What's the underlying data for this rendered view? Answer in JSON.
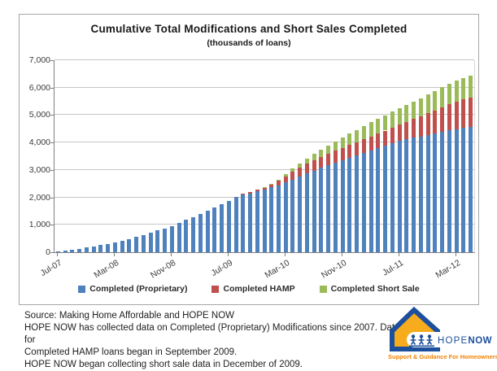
{
  "chart_data": {
    "type": "bar",
    "stacked": true,
    "title": "Cumulative Total Modifications and Short Sales Completed",
    "subtitle": "(thousands of loans)",
    "xlabel": "",
    "ylabel": "",
    "ylim": [
      0,
      7000
    ],
    "y_tick_step": 1000,
    "y_tick_labels": [
      "0",
      "1,000",
      "2,000",
      "3,000",
      "4,000",
      "5,000",
      "6,000",
      "7,000"
    ],
    "x_tick_every": 8,
    "x_tick_labels_shown": [
      "Jul-07",
      "Mar-08",
      "Nov-08",
      "Jul-09",
      "Mar-10",
      "Nov-10",
      "Jul-11",
      "Mar-12"
    ],
    "grid": true,
    "legend_position": "bottom",
    "x": [
      "Jul-07",
      "Aug-07",
      "Sep-07",
      "Oct-07",
      "Nov-07",
      "Dec-07",
      "Jan-08",
      "Feb-08",
      "Mar-08",
      "Apr-08",
      "May-08",
      "Jun-08",
      "Jul-08",
      "Aug-08",
      "Sep-08",
      "Oct-08",
      "Nov-08",
      "Dec-08",
      "Jan-09",
      "Feb-09",
      "Mar-09",
      "Apr-09",
      "May-09",
      "Jun-09",
      "Jul-09",
      "Aug-09",
      "Sep-09",
      "Oct-09",
      "Nov-09",
      "Dec-09",
      "Jan-10",
      "Feb-10",
      "Mar-10",
      "Apr-10",
      "May-10",
      "Jun-10",
      "Jul-10",
      "Aug-10",
      "Sep-10",
      "Oct-10",
      "Nov-10",
      "Dec-10",
      "Jan-11",
      "Feb-11",
      "Mar-11",
      "Apr-11",
      "May-11",
      "Jun-11",
      "Jul-11",
      "Aug-11",
      "Sep-11",
      "Oct-11",
      "Nov-11",
      "Dec-11",
      "Jan-12",
      "Feb-12",
      "Mar-12",
      "Apr-12",
      "May-12"
    ],
    "series": [
      {
        "name": "Completed (Proprietary)",
        "color": "#4F81BD",
        "values": [
          20,
          50,
          90,
          130,
          170,
          215,
          260,
          305,
          350,
          415,
          480,
          550,
          620,
          700,
          800,
          875,
          955,
          1065,
          1175,
          1275,
          1395,
          1510,
          1630,
          1755,
          1880,
          2005,
          2100,
          2150,
          2215,
          2290,
          2360,
          2440,
          2540,
          2650,
          2760,
          2870,
          2975,
          3080,
          3180,
          3270,
          3350,
          3450,
          3540,
          3630,
          3710,
          3800,
          3890,
          3970,
          4050,
          4110,
          4170,
          4220,
          4270,
          4330,
          4390,
          4440,
          4490,
          4530,
          4560
        ]
      },
      {
        "name": "Completed HAMP",
        "color": "#C0504D",
        "values": [
          0,
          0,
          0,
          0,
          0,
          0,
          0,
          0,
          0,
          0,
          0,
          0,
          0,
          0,
          0,
          0,
          0,
          0,
          0,
          0,
          0,
          0,
          0,
          0,
          0,
          0,
          30,
          45,
          60,
          75,
          115,
          160,
          230,
          280,
          320,
          350,
          375,
          395,
          410,
          425,
          440,
          455,
          470,
          490,
          510,
          525,
          545,
          570,
          600,
          640,
          685,
          735,
          790,
          845,
          900,
          950,
          1000,
          1040,
          1075
        ]
      },
      {
        "name": "Completed Short Sale",
        "color": "#9BBB59",
        "values": [
          0,
          0,
          0,
          0,
          0,
          0,
          0,
          0,
          0,
          0,
          0,
          0,
          0,
          0,
          0,
          0,
          0,
          0,
          0,
          0,
          0,
          0,
          0,
          0,
          0,
          0,
          0,
          0,
          0,
          10,
          30,
          55,
          85,
          120,
          160,
          200,
          240,
          275,
          310,
          345,
          380,
          420,
          450,
          485,
          515,
          540,
          560,
          580,
          600,
          620,
          640,
          660,
          680,
          700,
          720,
          740,
          760,
          785,
          810
        ]
      }
    ]
  },
  "colors": {
    "blue": "#4F81BD",
    "red": "#C0504D",
    "green": "#9BBB59",
    "gridline": "#c6c6c6",
    "axis": "#808080",
    "logo_blue": "#1c4f9c",
    "logo_yellow": "#f6ac1d",
    "logo_orange": "#f08300"
  },
  "source": {
    "line1": "Source: Making Home Affordable and HOPE NOW",
    "line2": "HOPE NOW has collected data on Completed (Proprietary) Modifications since 2007. Data for",
    "line3": "Completed HAMP loans began in September 2009.",
    "line4": "HOPE NOW began collecting short sale data in December of 2009."
  },
  "logo": {
    "hope": "HOPE",
    "now": "NOW",
    "tagline": "Support & Guidance For Homeowners"
  }
}
